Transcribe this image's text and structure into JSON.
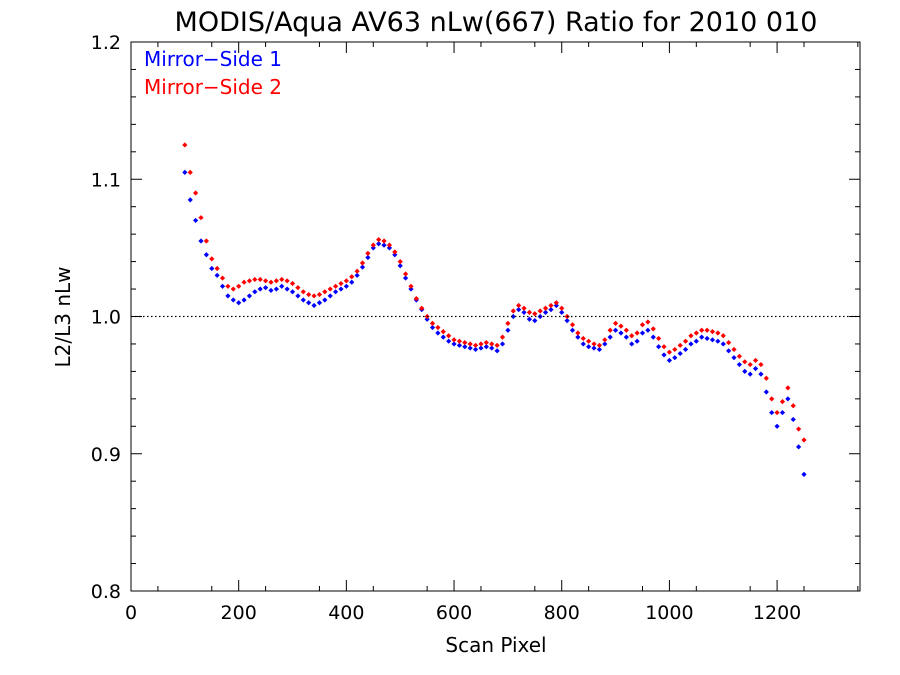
{
  "chart_data": {
    "type": "scatter",
    "title": "MODIS/Aqua AV63 nLw(667) Ratio for 2010 010",
    "xlabel": "Scan Pixel",
    "ylabel": "L2/L3 nLw",
    "xlim": [
      0,
      1354
    ],
    "ylim": [
      0.8,
      1.2
    ],
    "x_ticks": [
      0,
      200,
      400,
      600,
      800,
      1000,
      1200
    ],
    "x_tick_labels": [
      "0",
      "200",
      "400",
      "600",
      "800",
      "1000",
      "1200"
    ],
    "y_ticks": [
      0.8,
      0.9,
      1.0,
      1.1,
      1.2
    ],
    "y_tick_labels": [
      "0.8",
      "0.9",
      "1.0",
      "1.1",
      "1.2"
    ],
    "reference_line": {
      "y": 1.0,
      "style": "dotted"
    },
    "legend_position": "top-left",
    "series": [
      {
        "name": "Mirror−Side 1",
        "color": "#0000ff",
        "x": [
          100,
          110,
          120,
          130,
          140,
          150,
          160,
          170,
          180,
          190,
          200,
          210,
          220,
          230,
          240,
          250,
          260,
          270,
          280,
          290,
          300,
          310,
          320,
          330,
          340,
          350,
          360,
          370,
          380,
          390,
          400,
          410,
          420,
          430,
          440,
          450,
          460,
          470,
          480,
          490,
          500,
          510,
          520,
          530,
          540,
          550,
          560,
          570,
          580,
          590,
          600,
          610,
          620,
          630,
          640,
          650,
          660,
          670,
          680,
          690,
          700,
          710,
          720,
          730,
          740,
          750,
          760,
          770,
          780,
          790,
          800,
          810,
          820,
          830,
          840,
          850,
          860,
          870,
          880,
          890,
          900,
          910,
          920,
          930,
          940,
          950,
          960,
          970,
          980,
          990,
          1000,
          1010,
          1020,
          1030,
          1040,
          1050,
          1060,
          1070,
          1080,
          1090,
          1100,
          1110,
          1120,
          1130,
          1140,
          1150,
          1160,
          1170,
          1180,
          1190,
          1200,
          1210,
          1220,
          1230,
          1240,
          1250
        ],
        "y": [
          1.105,
          1.085,
          1.07,
          1.055,
          1.045,
          1.035,
          1.03,
          1.022,
          1.015,
          1.012,
          1.01,
          1.012,
          1.015,
          1.018,
          1.02,
          1.021,
          1.019,
          1.02,
          1.022,
          1.02,
          1.018,
          1.015,
          1.012,
          1.01,
          1.008,
          1.01,
          1.012,
          1.015,
          1.018,
          1.02,
          1.022,
          1.025,
          1.03,
          1.036,
          1.043,
          1.05,
          1.053,
          1.052,
          1.05,
          1.045,
          1.037,
          1.028,
          1.02,
          1.012,
          1.005,
          0.998,
          0.992,
          0.988,
          0.985,
          0.982,
          0.98,
          0.979,
          0.978,
          0.977,
          0.976,
          0.977,
          0.978,
          0.977,
          0.975,
          0.98,
          0.99,
          1.0,
          1.005,
          1.003,
          0.998,
          0.997,
          1.0,
          1.003,
          1.005,
          1.008,
          1.003,
          0.997,
          0.99,
          0.985,
          0.98,
          0.978,
          0.977,
          0.976,
          0.98,
          0.985,
          0.99,
          0.988,
          0.985,
          0.98,
          0.982,
          0.988,
          0.99,
          0.985,
          0.978,
          0.972,
          0.968,
          0.97,
          0.973,
          0.976,
          0.98,
          0.982,
          0.985,
          0.984,
          0.983,
          0.982,
          0.98,
          0.975,
          0.97,
          0.965,
          0.96,
          0.958,
          0.962,
          0.958,
          0.945,
          0.93,
          0.92,
          0.93,
          0.94,
          0.925,
          0.905,
          0.885
        ]
      },
      {
        "name": "Mirror−Side 2",
        "color": "#ff0000",
        "x": [
          100,
          110,
          120,
          130,
          140,
          150,
          160,
          170,
          180,
          190,
          200,
          210,
          220,
          230,
          240,
          250,
          260,
          270,
          280,
          290,
          300,
          310,
          320,
          330,
          340,
          350,
          360,
          370,
          380,
          390,
          400,
          410,
          420,
          430,
          440,
          450,
          460,
          470,
          480,
          490,
          500,
          510,
          520,
          530,
          540,
          550,
          560,
          570,
          580,
          590,
          600,
          610,
          620,
          630,
          640,
          650,
          660,
          670,
          680,
          690,
          700,
          710,
          720,
          730,
          740,
          750,
          760,
          770,
          780,
          790,
          800,
          810,
          820,
          830,
          840,
          850,
          860,
          870,
          880,
          890,
          900,
          910,
          920,
          930,
          940,
          950,
          960,
          970,
          980,
          990,
          1000,
          1010,
          1020,
          1030,
          1040,
          1050,
          1060,
          1070,
          1080,
          1090,
          1100,
          1110,
          1120,
          1130,
          1140,
          1150,
          1160,
          1170,
          1180,
          1190,
          1200,
          1210,
          1220,
          1230,
          1240,
          1250
        ],
        "y": [
          1.125,
          1.105,
          1.09,
          1.072,
          1.055,
          1.042,
          1.035,
          1.028,
          1.022,
          1.02,
          1.022,
          1.025,
          1.026,
          1.027,
          1.027,
          1.026,
          1.025,
          1.026,
          1.027,
          1.026,
          1.024,
          1.021,
          1.018,
          1.016,
          1.015,
          1.016,
          1.018,
          1.02,
          1.022,
          1.024,
          1.026,
          1.029,
          1.033,
          1.039,
          1.046,
          1.052,
          1.056,
          1.055,
          1.052,
          1.047,
          1.04,
          1.031,
          1.022,
          1.013,
          1.006,
          1.0,
          0.995,
          0.992,
          0.989,
          0.986,
          0.983,
          0.982,
          0.981,
          0.98,
          0.979,
          0.98,
          0.981,
          0.98,
          0.979,
          0.985,
          0.995,
          1.004,
          1.008,
          1.006,
          1.003,
          1.002,
          1.004,
          1.006,
          1.008,
          1.01,
          1.006,
          1.0,
          0.994,
          0.988,
          0.984,
          0.982,
          0.98,
          0.979,
          0.983,
          0.99,
          0.995,
          0.993,
          0.99,
          0.986,
          0.988,
          0.994,
          0.996,
          0.991,
          0.984,
          0.978,
          0.974,
          0.976,
          0.979,
          0.982,
          0.986,
          0.988,
          0.99,
          0.99,
          0.989,
          0.988,
          0.986,
          0.981,
          0.976,
          0.971,
          0.967,
          0.965,
          0.968,
          0.965,
          0.955,
          0.94,
          0.93,
          0.938,
          0.948,
          0.935,
          0.918,
          0.91
        ]
      }
    ]
  }
}
